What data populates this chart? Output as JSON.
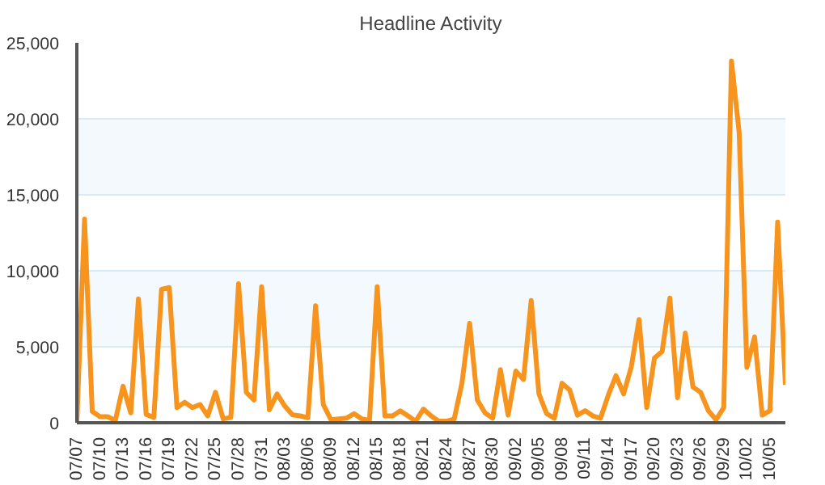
{
  "chart_data": {
    "type": "line",
    "title": "Headline Activity",
    "categories": [
      "07/07",
      null,
      null,
      "07/10",
      null,
      null,
      "07/13",
      null,
      null,
      "07/16",
      null,
      null,
      "07/19",
      null,
      null,
      "07/22",
      null,
      null,
      "07/25",
      null,
      null,
      "07/28",
      null,
      null,
      "07/31",
      null,
      null,
      "08/03",
      null,
      null,
      "08/06",
      null,
      null,
      "08/09",
      null,
      null,
      "08/12",
      null,
      null,
      "08/15",
      null,
      null,
      "08/18",
      null,
      null,
      "08/21",
      null,
      null,
      "08/24",
      null,
      null,
      "08/27",
      null,
      null,
      "08/30",
      null,
      null,
      "09/02",
      null,
      null,
      "09/05",
      null,
      null,
      "09/08",
      null,
      null,
      "09/11",
      null,
      null,
      "09/14",
      null,
      null,
      "09/17",
      null,
      null,
      "09/20",
      null,
      null,
      "09/23",
      null,
      null,
      "09/26",
      null,
      null,
      "09/29",
      null,
      null,
      "10/02",
      null,
      null,
      "10/05",
      null,
      null
    ],
    "series": [
      {
        "color": "#f7941d",
        "values": [
          0,
          13400,
          740,
          400,
          400,
          150,
          2400,
          650,
          8150,
          550,
          350,
          8780,
          8900,
          1000,
          1350,
          1000,
          1200,
          450,
          2000,
          260,
          350,
          9150,
          2000,
          1500,
          8950,
          850,
          1900,
          1100,
          520,
          450,
          330,
          7700,
          1200,
          200,
          250,
          300,
          600,
          250,
          150,
          8950,
          450,
          450,
          780,
          450,
          100,
          900,
          450,
          100,
          100,
          250,
          2600,
          6550,
          1500,
          650,
          300,
          3500,
          500,
          3400,
          2850,
          8050,
          1900,
          600,
          300,
          2600,
          2150,
          500,
          800,
          450,
          300,
          1800,
          3100,
          1900,
          3700,
          6800,
          1000,
          4250,
          4700,
          8200,
          1650,
          5900,
          2350,
          2000,
          800,
          200,
          1000,
          23800,
          19100,
          3650,
          5650,
          500,
          800,
          13200,
          2500
        ]
      }
    ],
    "ylim": [
      0,
      25000
    ],
    "yticks": [
      {
        "value": 0,
        "label": "0"
      },
      {
        "value": 5000,
        "label": "5,000"
      },
      {
        "value": 10000,
        "label": "10,000"
      },
      {
        "value": 15000,
        "label": "15,000"
      },
      {
        "value": 20000,
        "label": "20,000"
      },
      {
        "value": 25000,
        "label": "25,000"
      }
    ],
    "grid": "y",
    "marker": "none",
    "line_style": "solid"
  }
}
